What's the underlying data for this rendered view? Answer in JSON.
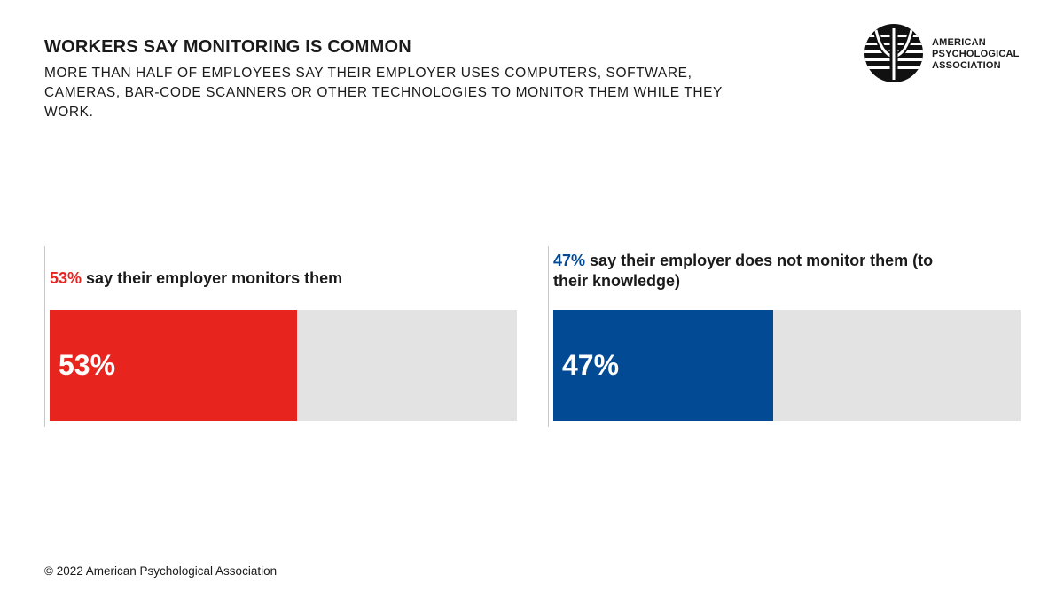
{
  "header": {
    "title": "WORKERS SAY MONITORING IS COMMON",
    "subtitle": "MORE THAN HALF OF EMPLOYEES SAY THEIR EMPLOYER USES COMPUTERS, SOFTWARE, CAMERAS, BAR-CODE SCANNERS OR OTHER TECHNOLOGIES TO MONITOR THEM WHILE THEY WORK."
  },
  "logo": {
    "icon": "psi-globe-icon",
    "line1": "AMERICAN",
    "line2": "PSYCHOLOGICAL",
    "line3": "ASSOCIATION"
  },
  "colors": {
    "monitored": "#e8241f",
    "not_monitored": "#034a95",
    "track": "#e3e3e3"
  },
  "chart_data": {
    "type": "bar",
    "orientation": "horizontal",
    "title": "WORKERS SAY MONITORING IS COMMON",
    "xlim": [
      0,
      100
    ],
    "unit": "%",
    "panels": [
      {
        "value": 53,
        "label": "53%",
        "caption_pct": "53%",
        "caption_text": "say their employer monitors them",
        "color": "#e8241f"
      },
      {
        "value": 47,
        "label": "47%",
        "caption_pct": "47%",
        "caption_text": "say their employer does not monitor them (to their knowledge)",
        "color": "#034a95"
      }
    ]
  },
  "footer": {
    "copyright": "© 2022 American Psychological Association"
  }
}
